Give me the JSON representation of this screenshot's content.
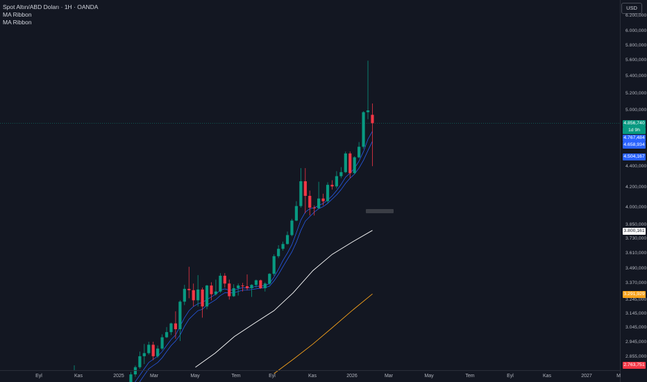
{
  "chart_data": {
    "type": "candlestick",
    "title": "Spot Altın/ABD Doları · 1H · OANDA",
    "indicators": [
      "MA Ribbon",
      "MA Ribbon"
    ],
    "currency": "USD",
    "x_labels": [
      "Eyl",
      "Kas",
      "2025",
      "Mar",
      "May",
      "Tem",
      "Eyl",
      "Kas",
      "2026",
      "Mar",
      "May",
      "Tem",
      "Eyl",
      "Kas",
      "2027",
      "M"
    ],
    "y_labels": [
      "6.200,000",
      "6.000,000",
      "5.800,000",
      "5.600,000",
      "5.400,000",
      "5.200,000",
      "5.000,000",
      "4.400,000",
      "4.200,000",
      "4.000,000",
      "3.850,000",
      "3.730,000",
      "3.610,000",
      "3.490,000",
      "3.370,000",
      "3.245,000",
      "3.145,000",
      "3.045,000",
      "2.945,000",
      "2.855,000"
    ],
    "y_scale": "log",
    "last_price": 4856.74,
    "price_badges": [
      {
        "label": "4.856,740",
        "color": "#089981"
      },
      {
        "label": "1d 9h",
        "color": "#089981"
      },
      {
        "label": "4.767,484",
        "color": "#2962ff"
      },
      {
        "label": "4.658,934",
        "color": "#2962ff"
      },
      {
        "label": "4.504,167",
        "color": "#2962ff"
      },
      {
        "label": "3.800,161",
        "color": "#ffffff"
      },
      {
        "label": "3.291,929",
        "color": "#f7a21b"
      },
      {
        "label": "2.763,751",
        "color": "#f23645"
      }
    ],
    "candles": [
      {
        "d": "2025-01-20",
        "o": 2680,
        "h": 2760,
        "l": 2660,
        "c": 2745
      },
      {
        "d": "2025-01-27",
        "o": 2745,
        "h": 2800,
        "l": 2730,
        "c": 2790
      },
      {
        "d": "2025-02-03",
        "o": 2790,
        "h": 2890,
        "l": 2780,
        "c": 2860
      },
      {
        "d": "2025-02-10",
        "o": 2860,
        "h": 2940,
        "l": 2810,
        "c": 2880
      },
      {
        "d": "2025-02-17",
        "o": 2880,
        "h": 2955,
        "l": 2870,
        "c": 2935
      },
      {
        "d": "2025-02-24",
        "o": 2935,
        "h": 2955,
        "l": 2835,
        "c": 2860
      },
      {
        "d": "2025-03-03",
        "o": 2860,
        "h": 2930,
        "l": 2850,
        "c": 2910
      },
      {
        "d": "2025-03-10",
        "o": 2910,
        "h": 3005,
        "l": 2900,
        "c": 2985
      },
      {
        "d": "2025-03-17",
        "o": 2985,
        "h": 3055,
        "l": 2980,
        "c": 3020
      },
      {
        "d": "2025-03-24",
        "o": 3020,
        "h": 3085,
        "l": 3000,
        "c": 3080
      },
      {
        "d": "2025-03-31",
        "o": 3080,
        "h": 3165,
        "l": 2975,
        "c": 3040
      },
      {
        "d": "2025-04-07",
        "o": 3040,
        "h": 3245,
        "l": 2960,
        "c": 3235
      },
      {
        "d": "2025-04-14",
        "o": 3235,
        "h": 3360,
        "l": 3210,
        "c": 3330
      },
      {
        "d": "2025-04-21",
        "o": 3330,
        "h": 3500,
        "l": 3260,
        "c": 3320
      },
      {
        "d": "2025-04-28",
        "o": 3320,
        "h": 3370,
        "l": 3200,
        "c": 3245
      },
      {
        "d": "2025-05-05",
        "o": 3245,
        "h": 3435,
        "l": 3200,
        "c": 3325
      },
      {
        "d": "2025-05-12",
        "o": 3325,
        "h": 3340,
        "l": 3120,
        "c": 3200
      },
      {
        "d": "2025-05-19",
        "o": 3200,
        "h": 3360,
        "l": 3180,
        "c": 3355
      },
      {
        "d": "2025-05-26",
        "o": 3355,
        "h": 3380,
        "l": 3245,
        "c": 3290
      },
      {
        "d": "2025-06-02",
        "o": 3290,
        "h": 3400,
        "l": 3280,
        "c": 3310
      },
      {
        "d": "2025-06-09",
        "o": 3310,
        "h": 3450,
        "l": 3300,
        "c": 3430
      },
      {
        "d": "2025-06-16",
        "o": 3430,
        "h": 3450,
        "l": 3340,
        "c": 3370
      },
      {
        "d": "2025-06-23",
        "o": 3370,
        "h": 3400,
        "l": 3250,
        "c": 3275
      },
      {
        "d": "2025-06-30",
        "o": 3275,
        "h": 3365,
        "l": 3270,
        "c": 3335
      },
      {
        "d": "2025-07-07",
        "o": 3335,
        "h": 3370,
        "l": 3280,
        "c": 3355
      },
      {
        "d": "2025-07-14",
        "o": 3355,
        "h": 3375,
        "l": 3310,
        "c": 3350
      },
      {
        "d": "2025-07-21",
        "o": 3350,
        "h": 3440,
        "l": 3320,
        "c": 3335
      },
      {
        "d": "2025-07-28",
        "o": 3335,
        "h": 3365,
        "l": 3270,
        "c": 3360
      },
      {
        "d": "2025-08-04",
        "o": 3360,
        "h": 3400,
        "l": 3340,
        "c": 3395
      },
      {
        "d": "2025-08-11",
        "o": 3395,
        "h": 3400,
        "l": 3330,
        "c": 3335
      },
      {
        "d": "2025-08-18",
        "o": 3335,
        "h": 3380,
        "l": 3310,
        "c": 3370
      },
      {
        "d": "2025-08-25",
        "o": 3370,
        "h": 3450,
        "l": 3360,
        "c": 3445
      },
      {
        "d": "2025-09-01",
        "o": 3445,
        "h": 3600,
        "l": 3430,
        "c": 3585
      },
      {
        "d": "2025-09-08",
        "o": 3585,
        "h": 3675,
        "l": 3570,
        "c": 3645
      },
      {
        "d": "2025-09-15",
        "o": 3645,
        "h": 3705,
        "l": 3630,
        "c": 3685
      },
      {
        "d": "2025-09-22",
        "o": 3685,
        "h": 3790,
        "l": 3680,
        "c": 3760
      },
      {
        "d": "2025-09-29",
        "o": 3760,
        "h": 3900,
        "l": 3750,
        "c": 3885
      },
      {
        "d": "2025-10-06",
        "o": 3885,
        "h": 4060,
        "l": 3880,
        "c": 4015
      },
      {
        "d": "2025-10-13",
        "o": 4015,
        "h": 4380,
        "l": 4000,
        "c": 4250
      },
      {
        "d": "2025-10-20",
        "o": 4250,
        "h": 4380,
        "l": 3950,
        "c": 4110
      },
      {
        "d": "2025-10-27",
        "o": 4110,
        "h": 4160,
        "l": 3930,
        "c": 4000
      },
      {
        "d": "2025-11-03",
        "o": 4000,
        "h": 4020,
        "l": 3930,
        "c": 3995
      },
      {
        "d": "2025-11-10",
        "o": 3995,
        "h": 4245,
        "l": 3990,
        "c": 4085
      },
      {
        "d": "2025-11-17",
        "o": 4085,
        "h": 4130,
        "l": 4020,
        "c": 4060
      },
      {
        "d": "2025-11-24",
        "o": 4060,
        "h": 4240,
        "l": 4040,
        "c": 4215
      },
      {
        "d": "2025-12-01",
        "o": 4215,
        "h": 4260,
        "l": 4170,
        "c": 4200
      },
      {
        "d": "2025-12-08",
        "o": 4200,
        "h": 4350,
        "l": 4180,
        "c": 4300
      },
      {
        "d": "2025-12-15",
        "o": 4300,
        "h": 4390,
        "l": 4280,
        "c": 4340
      },
      {
        "d": "2025-12-22",
        "o": 4340,
        "h": 4550,
        "l": 4330,
        "c": 4530
      },
      {
        "d": "2025-12-29",
        "o": 4530,
        "h": 4550,
        "l": 4280,
        "c": 4330
      },
      {
        "d": "2026-01-05",
        "o": 4330,
        "h": 4500,
        "l": 4320,
        "c": 4490
      },
      {
        "d": "2026-01-12",
        "o": 4490,
        "h": 4650,
        "l": 4480,
        "c": 4600
      },
      {
        "d": "2026-01-19",
        "o": 4600,
        "h": 4990,
        "l": 4580,
        "c": 4980
      },
      {
        "d": "2026-01-26",
        "o": 4980,
        "h": 5600,
        "l": 4900,
        "c": 5000
      },
      {
        "d": "2026-02-02",
        "o": 4950,
        "h": 5080,
        "l": 4400,
        "c": 4856
      }
    ],
    "ma_fast": {
      "color": "#2962ff",
      "values": [
        2620,
        2660,
        2700,
        2740,
        2780,
        2800,
        2820,
        2850,
        2890,
        2930,
        2960,
        3000,
        3060,
        3110,
        3140,
        3170,
        3180,
        3210,
        3230,
        3250,
        3280,
        3300,
        3300,
        3300,
        3310,
        3320,
        3320,
        3325,
        3330,
        3335,
        3340,
        3350,
        3390,
        3440,
        3500,
        3560,
        3620,
        3700,
        3800,
        3880,
        3920,
        3960,
        3990,
        4010,
        4040,
        4080,
        4120,
        4170,
        4230,
        4280,
        4320,
        4380,
        4460,
        4560,
        4659
      ]
    },
    "ma_fast2": {
      "color": "#2962ff",
      "values": [
        2660,
        2700,
        2740,
        2780,
        2820,
        2840,
        2860,
        2890,
        2930,
        2970,
        3000,
        3060,
        3120,
        3170,
        3200,
        3220,
        3230,
        3250,
        3270,
        3290,
        3320,
        3330,
        3320,
        3320,
        3330,
        3340,
        3335,
        3340,
        3350,
        3350,
        3355,
        3370,
        3420,
        3480,
        3550,
        3610,
        3680,
        3780,
        3890,
        3960,
        3990,
        4000,
        4020,
        4040,
        4070,
        4110,
        4160,
        4220,
        4290,
        4330,
        4380,
        4450,
        4550,
        4680,
        4767
      ]
    },
    "ma_mid": {
      "color": "#ffffff",
      "points": [
        [
          "2025-05-01",
          2790
        ],
        [
          "2025-06-01",
          2880
        ],
        [
          "2025-07-01",
          2990
        ],
        [
          "2025-08-01",
          3080
        ],
        [
          "2025-09-01",
          3170
        ],
        [
          "2025-10-01",
          3300
        ],
        [
          "2025-11-01",
          3470
        ],
        [
          "2025-12-01",
          3600
        ],
        [
          "2026-01-01",
          3700
        ],
        [
          "2026-02-02",
          3800
        ]
      ]
    },
    "ma_slow": {
      "color": "#f7a21b",
      "points": [
        [
          "2025-09-01",
          2750
        ],
        [
          "2025-10-01",
          2840
        ],
        [
          "2025-11-01",
          2940
        ],
        [
          "2025-12-01",
          3050
        ],
        [
          "2026-01-01",
          3170
        ],
        [
          "2026-02-02",
          3292
        ]
      ]
    }
  }
}
